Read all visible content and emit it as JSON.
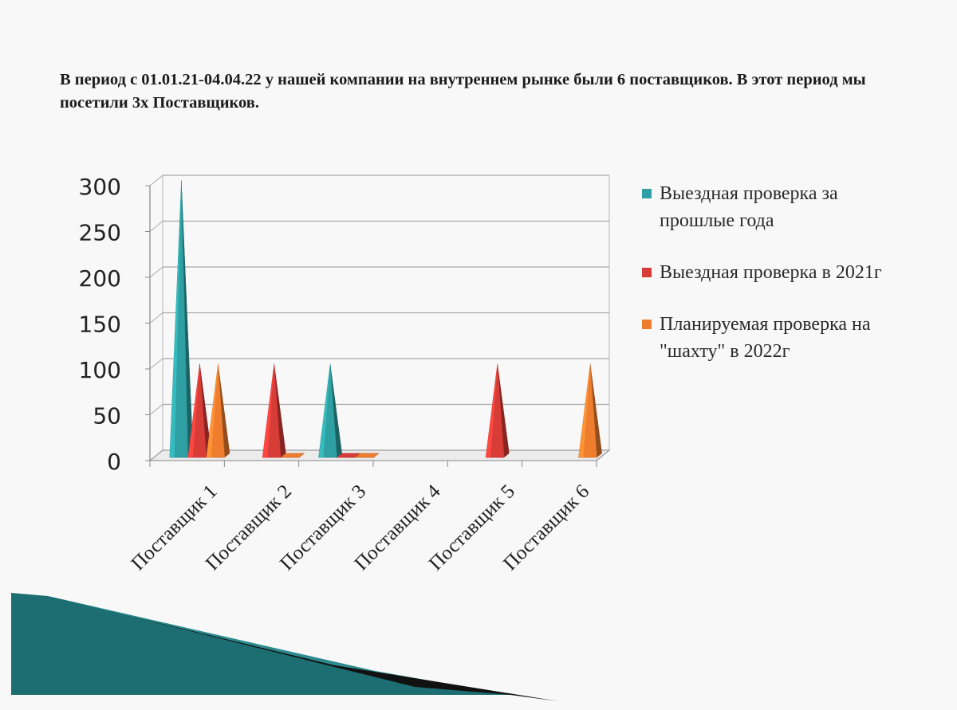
{
  "heading": "В период с 01.01.21-04.04.22 у нашей компании на внутреннем рынке были 6 поставщиков. В этот период мы посетили 3х Поставщиков.",
  "colors": {
    "series_1": "#2e9fa2",
    "series_2": "#d83c37",
    "series_3": "#ee7d2e",
    "grid": "#a9a9a9",
    "text": "#222222",
    "decor_teal": "#1d6e72",
    "decor_black": "#111111"
  },
  "chart_data": {
    "type": "bar",
    "bar_shape": "3d-pyramid",
    "categories": [
      "Поставщик 1",
      "Поставщик 2",
      "Поставщик 3",
      "Поставщик 4",
      "Поставщик 5",
      "Поставщик 6"
    ],
    "series": [
      {
        "name": "Выездная проверка за прошлые года",
        "values": [
          300,
          0,
          100,
          0,
          0,
          0
        ]
      },
      {
        "name": "Выездная проверка в 2021г",
        "values": [
          100,
          100,
          0,
          0,
          100,
          0
        ]
      },
      {
        "name": "Планируемая проверка на \"шахту\" в 2022г",
        "values": [
          100,
          0,
          0,
          0,
          0,
          100
        ]
      }
    ],
    "ylim": [
      0,
      300
    ],
    "yticks": [
      0,
      50,
      100,
      150,
      200,
      250,
      300
    ],
    "grid": true,
    "legend_position": "right",
    "xlabel": "",
    "ylabel": ""
  }
}
